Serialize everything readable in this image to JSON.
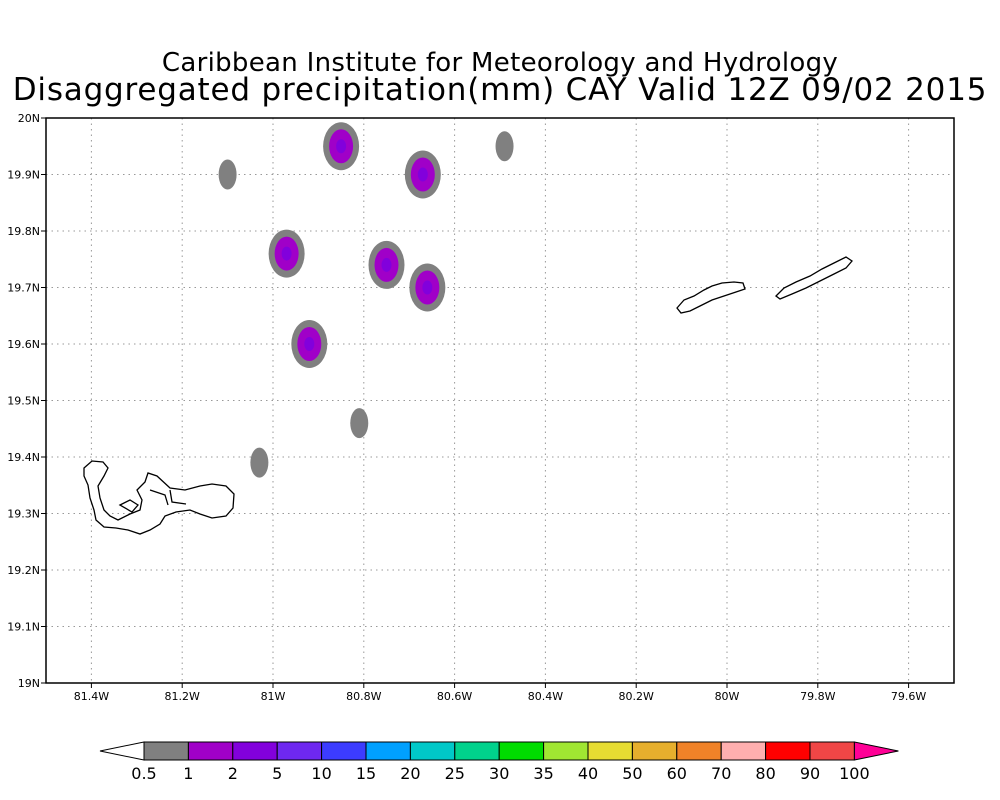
{
  "title_line1": "Caribbean Institute for Meteorology and Hydrology",
  "title_line2": "Disaggregated precipitation(mm) CAY Valid 12Z 09/02 2015",
  "map": {
    "lon_ticks": [
      {
        "value": -81.4,
        "label": "81.4W"
      },
      {
        "value": -81.2,
        "label": "81.2W"
      },
      {
        "value": -81.0,
        "label": "81W"
      },
      {
        "value": -80.8,
        "label": "80.8W"
      },
      {
        "value": -80.6,
        "label": "80.6W"
      },
      {
        "value": -80.4,
        "label": "80.4W"
      },
      {
        "value": -80.2,
        "label": "80.2W"
      },
      {
        "value": -80.0,
        "label": "80W"
      },
      {
        "value": -79.8,
        "label": "79.8W"
      },
      {
        "value": -79.6,
        "label": "79.6W"
      }
    ],
    "lat_ticks": [
      {
        "value": 19.0,
        "label": "19N"
      },
      {
        "value": 19.1,
        "label": "19.1N"
      },
      {
        "value": 19.2,
        "label": "19.2N"
      },
      {
        "value": 19.3,
        "label": "19.3N"
      },
      {
        "value": 19.4,
        "label": "19.4N"
      },
      {
        "value": 19.5,
        "label": "19.5N"
      },
      {
        "value": 19.6,
        "label": "19.6N"
      },
      {
        "value": 19.7,
        "label": "19.7N"
      },
      {
        "value": 19.8,
        "label": "19.8N"
      },
      {
        "value": 19.9,
        "label": "19.9N"
      },
      {
        "value": 20.0,
        "label": "20N"
      }
    ],
    "grid": "dotted",
    "precip_cells": [
      {
        "lon": -81.1,
        "lat": 19.9,
        "level": "0.5-1"
      },
      {
        "lon": -80.85,
        "lat": 19.95,
        "level": "1-2"
      },
      {
        "lon": -80.67,
        "lat": 19.9,
        "level": "1-2"
      },
      {
        "lon": -80.49,
        "lat": 19.95,
        "level": "0.5-1"
      },
      {
        "lon": -80.97,
        "lat": 19.76,
        "level": "1-2"
      },
      {
        "lon": -80.75,
        "lat": 19.74,
        "level": "1-2"
      },
      {
        "lon": -80.66,
        "lat": 19.7,
        "level": "1-2"
      },
      {
        "lon": -80.92,
        "lat": 19.6,
        "level": "1-2"
      },
      {
        "lon": -80.81,
        "lat": 19.46,
        "level": "0.5-1"
      },
      {
        "lon": -81.03,
        "lat": 19.39,
        "level": "0.5-1"
      }
    ],
    "islands": [
      "Grand Cayman",
      "Little Cayman",
      "Cayman Brac"
    ]
  },
  "colorbar": {
    "labels": [
      "0.5",
      "1",
      "2",
      "5",
      "10",
      "15",
      "20",
      "25",
      "30",
      "35",
      "40",
      "50",
      "60",
      "70",
      "80",
      "90",
      "100"
    ],
    "colors": [
      "#ffffff",
      "#808080",
      "#a000c8",
      "#8200dc",
      "#6e28f0",
      "#3c3cff",
      "#00a0ff",
      "#00c8c8",
      "#00d28c",
      "#00dc00",
      "#a0e632",
      "#e6dc32",
      "#e6af2d",
      "#f08228",
      "#ffafaf",
      "#ff0000",
      "#f04646",
      "#ff0096"
    ]
  }
}
